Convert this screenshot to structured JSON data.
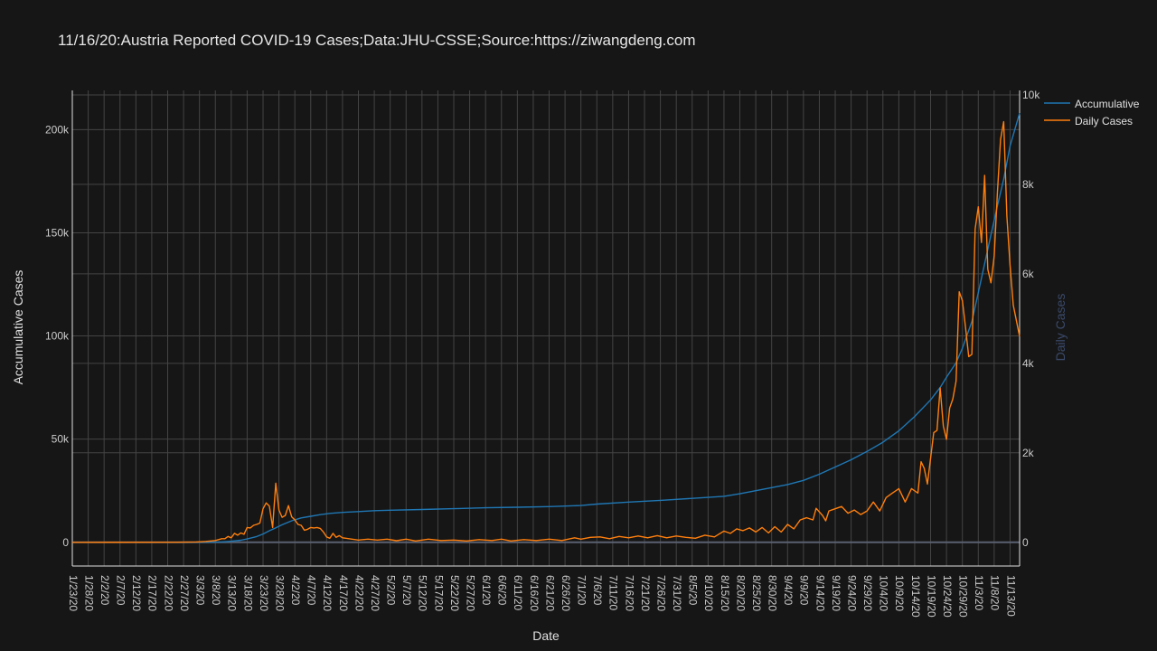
{
  "chart_data": {
    "type": "line",
    "title": "11/16/20:Austria Reported COVID-19 Cases;Data:JHU-CSSE;Source:https://ziwangdeng.com",
    "xlabel": "Date",
    "ylabel": "Accumulative Cases",
    "y2label": "Daily Cases",
    "x_start": "2020-01-23",
    "x_end": "2020-11-16",
    "x_ticks": [
      "1/23/20",
      "1/28/20",
      "2/2/20",
      "2/7/20",
      "2/12/20",
      "2/17/20",
      "2/22/20",
      "2/27/20",
      "3/3/20",
      "3/8/20",
      "3/13/20",
      "3/18/20",
      "3/23/20",
      "3/28/20",
      "4/2/20",
      "4/7/20",
      "4/12/20",
      "4/17/20",
      "4/22/20",
      "4/27/20",
      "5/2/20",
      "5/7/20",
      "5/12/20",
      "5/17/20",
      "5/22/20",
      "5/27/20",
      "6/1/20",
      "6/6/20",
      "6/11/20",
      "6/16/20",
      "6/21/20",
      "6/26/20",
      "7/1/20",
      "7/6/20",
      "7/11/20",
      "7/16/20",
      "7/21/20",
      "7/26/20",
      "7/31/20",
      "8/5/20",
      "8/10/20",
      "8/15/20",
      "8/20/20",
      "8/25/20",
      "8/30/20",
      "9/4/20",
      "9/9/20",
      "9/14/20",
      "9/19/20",
      "9/24/20",
      "9/29/20",
      "10/4/20",
      "10/9/20",
      "10/14/20",
      "10/19/20",
      "10/24/20",
      "10/29/20",
      "11/3/20",
      "11/8/20",
      "11/13/20"
    ],
    "y_ticks": [
      {
        "v": 0,
        "label": "0"
      },
      {
        "v": 50000,
        "label": "50k"
      },
      {
        "v": 100000,
        "label": "100k"
      },
      {
        "v": 150000,
        "label": "150k"
      },
      {
        "v": 200000,
        "label": "200k"
      }
    ],
    "y2_ticks": [
      {
        "v": 0,
        "label": "0"
      },
      {
        "v": 2000,
        "label": "2k"
      },
      {
        "v": 4000,
        "label": "4k"
      },
      {
        "v": 6000,
        "label": "6k"
      },
      {
        "v": 8000,
        "label": "8k"
      },
      {
        "v": 10000,
        "label": "10k"
      }
    ],
    "ylim": [
      -11500,
      219000
    ],
    "y2lim": [
      -530,
      10100
    ],
    "grid": true,
    "legend_position": "top-right",
    "colors": {
      "background": "#161616",
      "grid": "#444444",
      "axis_text": "#cccccc",
      "y2_title": "#3b4a6b",
      "zero_line": "#5a6070"
    },
    "series": [
      {
        "name": "Accumulative",
        "axis": "y",
        "color": "#1f77b4",
        "points": [
          [
            "2020-01-23",
            0
          ],
          [
            "2020-02-25",
            2
          ],
          [
            "2020-03-05",
            40
          ],
          [
            "2020-03-10",
            180
          ],
          [
            "2020-03-13",
            500
          ],
          [
            "2020-03-16",
            1000
          ],
          [
            "2020-03-18",
            1600
          ],
          [
            "2020-03-21",
            2800
          ],
          [
            "2020-03-23",
            4000
          ],
          [
            "2020-03-25",
            5600
          ],
          [
            "2020-03-27",
            7000
          ],
          [
            "2020-03-29",
            8500
          ],
          [
            "2020-04-01",
            10400
          ],
          [
            "2020-04-04",
            11800
          ],
          [
            "2020-04-07",
            12600
          ],
          [
            "2020-04-10",
            13400
          ],
          [
            "2020-04-13",
            14000
          ],
          [
            "2020-04-17",
            14500
          ],
          [
            "2020-04-22",
            14900
          ],
          [
            "2020-04-27",
            15300
          ],
          [
            "2020-05-02",
            15550
          ],
          [
            "2020-05-12",
            15900
          ],
          [
            "2020-05-22",
            16300
          ],
          [
            "2020-06-01",
            16700
          ],
          [
            "2020-06-11",
            17000
          ],
          [
            "2020-06-21",
            17300
          ],
          [
            "2020-07-01",
            17800
          ],
          [
            "2020-07-06",
            18500
          ],
          [
            "2020-07-16",
            19500
          ],
          [
            "2020-07-26",
            20300
          ],
          [
            "2020-08-05",
            21300
          ],
          [
            "2020-08-15",
            22300
          ],
          [
            "2020-08-20",
            23500
          ],
          [
            "2020-08-25",
            25000
          ],
          [
            "2020-08-30",
            26500
          ],
          [
            "2020-09-04",
            28000
          ],
          [
            "2020-09-09",
            30000
          ],
          [
            "2020-09-14",
            33000
          ],
          [
            "2020-09-19",
            36500
          ],
          [
            "2020-09-24",
            40000
          ],
          [
            "2020-09-29",
            44000
          ],
          [
            "2020-10-04",
            48500
          ],
          [
            "2020-10-09",
            54000
          ],
          [
            "2020-10-14",
            61000
          ],
          [
            "2020-10-19",
            69000
          ],
          [
            "2020-10-22",
            75000
          ],
          [
            "2020-10-24",
            80000
          ],
          [
            "2020-10-27",
            87000
          ],
          [
            "2020-10-29",
            94000
          ],
          [
            "2020-11-01",
            107000
          ],
          [
            "2020-11-03",
            121000
          ],
          [
            "2020-11-05",
            135000
          ],
          [
            "2020-11-07",
            149000
          ],
          [
            "2020-11-09",
            163000
          ],
          [
            "2020-11-11",
            176000
          ],
          [
            "2020-11-13",
            192000
          ],
          [
            "2020-11-16",
            208000
          ]
        ]
      },
      {
        "name": "Daily Cases",
        "axis": "y2",
        "color": "#ff7f0e",
        "points": [
          [
            "2020-01-23",
            0
          ],
          [
            "2020-02-25",
            2
          ],
          [
            "2020-03-02",
            8
          ],
          [
            "2020-03-05",
            20
          ],
          [
            "2020-03-08",
            40
          ],
          [
            "2020-03-10",
            80
          ],
          [
            "2020-03-11",
            80
          ],
          [
            "2020-03-12",
            130
          ],
          [
            "2020-03-13",
            100
          ],
          [
            "2020-03-14",
            200
          ],
          [
            "2020-03-15",
            160
          ],
          [
            "2020-03-16",
            210
          ],
          [
            "2020-03-17",
            180
          ],
          [
            "2020-03-18",
            330
          ],
          [
            "2020-03-19",
            320
          ],
          [
            "2020-03-20",
            380
          ],
          [
            "2020-03-21",
            400
          ],
          [
            "2020-03-22",
            430
          ],
          [
            "2020-03-23",
            750
          ],
          [
            "2020-03-24",
            880
          ],
          [
            "2020-03-25",
            810
          ],
          [
            "2020-03-26",
            330
          ],
          [
            "2020-03-27",
            1320
          ],
          [
            "2020-03-28",
            720
          ],
          [
            "2020-03-29",
            560
          ],
          [
            "2020-03-30",
            600
          ],
          [
            "2020-03-31",
            820
          ],
          [
            "2020-04-01",
            570
          ],
          [
            "2020-04-02",
            500
          ],
          [
            "2020-04-03",
            400
          ],
          [
            "2020-04-04",
            380
          ],
          [
            "2020-04-05",
            270
          ],
          [
            "2020-04-06",
            290
          ],
          [
            "2020-04-07",
            330
          ],
          [
            "2020-04-08",
            320
          ],
          [
            "2020-04-09",
            330
          ],
          [
            "2020-04-10",
            310
          ],
          [
            "2020-04-11",
            230
          ],
          [
            "2020-04-12",
            120
          ],
          [
            "2020-04-13",
            90
          ],
          [
            "2020-04-14",
            200
          ],
          [
            "2020-04-15",
            110
          ],
          [
            "2020-04-16",
            150
          ],
          [
            "2020-04-17",
            100
          ],
          [
            "2020-04-19",
            80
          ],
          [
            "2020-04-22",
            50
          ],
          [
            "2020-04-25",
            70
          ],
          [
            "2020-04-28",
            50
          ],
          [
            "2020-05-01",
            70
          ],
          [
            "2020-05-04",
            35
          ],
          [
            "2020-05-07",
            70
          ],
          [
            "2020-05-10",
            30
          ],
          [
            "2020-05-14",
            70
          ],
          [
            "2020-05-18",
            40
          ],
          [
            "2020-05-22",
            50
          ],
          [
            "2020-05-26",
            30
          ],
          [
            "2020-05-30",
            60
          ],
          [
            "2020-06-03",
            40
          ],
          [
            "2020-06-06",
            70
          ],
          [
            "2020-06-09",
            30
          ],
          [
            "2020-06-13",
            60
          ],
          [
            "2020-06-17",
            40
          ],
          [
            "2020-06-21",
            70
          ],
          [
            "2020-06-25",
            40
          ],
          [
            "2020-06-29",
            100
          ],
          [
            "2020-07-01",
            70
          ],
          [
            "2020-07-04",
            110
          ],
          [
            "2020-07-07",
            120
          ],
          [
            "2020-07-10",
            80
          ],
          [
            "2020-07-13",
            130
          ],
          [
            "2020-07-16",
            100
          ],
          [
            "2020-07-19",
            140
          ],
          [
            "2020-07-22",
            100
          ],
          [
            "2020-07-25",
            150
          ],
          [
            "2020-07-28",
            100
          ],
          [
            "2020-07-31",
            140
          ],
          [
            "2020-08-03",
            110
          ],
          [
            "2020-08-06",
            90
          ],
          [
            "2020-08-09",
            160
          ],
          [
            "2020-08-12",
            120
          ],
          [
            "2020-08-15",
            250
          ],
          [
            "2020-08-17",
            200
          ],
          [
            "2020-08-19",
            300
          ],
          [
            "2020-08-21",
            260
          ],
          [
            "2020-08-23",
            320
          ],
          [
            "2020-08-25",
            230
          ],
          [
            "2020-08-27",
            330
          ],
          [
            "2020-08-29",
            210
          ],
          [
            "2020-08-31",
            350
          ],
          [
            "2020-09-02",
            230
          ],
          [
            "2020-09-04",
            400
          ],
          [
            "2020-09-06",
            300
          ],
          [
            "2020-09-08",
            500
          ],
          [
            "2020-09-10",
            550
          ],
          [
            "2020-09-12",
            500
          ],
          [
            "2020-09-13",
            760
          ],
          [
            "2020-09-15",
            600
          ],
          [
            "2020-09-16",
            480
          ],
          [
            "2020-09-17",
            700
          ],
          [
            "2020-09-19",
            750
          ],
          [
            "2020-09-21",
            800
          ],
          [
            "2020-09-23",
            650
          ],
          [
            "2020-09-25",
            720
          ],
          [
            "2020-09-27",
            620
          ],
          [
            "2020-09-29",
            700
          ],
          [
            "2020-10-01",
            900
          ],
          [
            "2020-10-03",
            700
          ],
          [
            "2020-10-05",
            1000
          ],
          [
            "2020-10-07",
            1100
          ],
          [
            "2020-10-08",
            1150
          ],
          [
            "2020-10-09",
            1200
          ],
          [
            "2020-10-11",
            900
          ],
          [
            "2020-10-13",
            1200
          ],
          [
            "2020-10-15",
            1100
          ],
          [
            "2020-10-16",
            1800
          ],
          [
            "2020-10-17",
            1650
          ],
          [
            "2020-10-18",
            1300
          ],
          [
            "2020-10-20",
            2450
          ],
          [
            "2020-10-21",
            2500
          ],
          [
            "2020-10-22",
            3450
          ],
          [
            "2020-10-23",
            2600
          ],
          [
            "2020-10-24",
            2300
          ],
          [
            "2020-10-25",
            3000
          ],
          [
            "2020-10-26",
            3200
          ],
          [
            "2020-10-27",
            3600
          ],
          [
            "2020-10-28",
            5600
          ],
          [
            "2020-10-29",
            5400
          ],
          [
            "2020-10-30",
            4800
          ],
          [
            "2020-10-31",
            4150
          ],
          [
            "2020-11-01",
            4200
          ],
          [
            "2020-11-02",
            7000
          ],
          [
            "2020-11-03",
            7500
          ],
          [
            "2020-11-04",
            6700
          ],
          [
            "2020-11-05",
            8200
          ],
          [
            "2020-11-06",
            6100
          ],
          [
            "2020-11-07",
            5800
          ],
          [
            "2020-11-08",
            6400
          ],
          [
            "2020-11-09",
            7800
          ],
          [
            "2020-11-10",
            9000
          ],
          [
            "2020-11-11",
            9400
          ],
          [
            "2020-11-12",
            7300
          ],
          [
            "2020-11-13",
            6200
          ],
          [
            "2020-11-14",
            5300
          ],
          [
            "2020-11-16",
            4600
          ]
        ]
      }
    ]
  }
}
